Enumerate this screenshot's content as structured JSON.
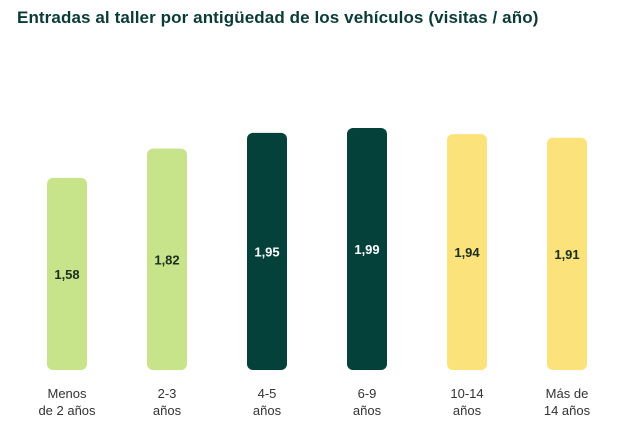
{
  "chart_data": {
    "type": "bar",
    "title": "Entradas al taller por antigüedad de los vehículos (visitas / año)",
    "categories": [
      [
        "Menos",
        "de 2 años"
      ],
      [
        "2-3",
        "años"
      ],
      [
        "4-5",
        "años"
      ],
      [
        "6-9",
        "años"
      ],
      [
        "10-14",
        "años"
      ],
      [
        "Más de",
        "14 años"
      ]
    ],
    "values": [
      1.58,
      1.82,
      1.95,
      1.99,
      1.94,
      1.91
    ],
    "value_labels": [
      "1,58",
      "1,82",
      "1,95",
      "1,99",
      "1,94",
      "1,91"
    ],
    "bar_colors": [
      "#c8e48a",
      "#c8e48a",
      "#04413b",
      "#04413b",
      "#fbe27a",
      "#fbe27a"
    ],
    "label_colors": [
      "#1b2e20",
      "#1b2e20",
      "#ffffff",
      "#ffffff",
      "#1b2e20",
      "#1b2e20"
    ],
    "xlabel": "",
    "ylabel": "",
    "grid": false
  },
  "colors": {
    "title": "#0b3b36",
    "light_green": "#c8e48a",
    "dark_green": "#04413b",
    "yellow": "#fbe27a"
  }
}
